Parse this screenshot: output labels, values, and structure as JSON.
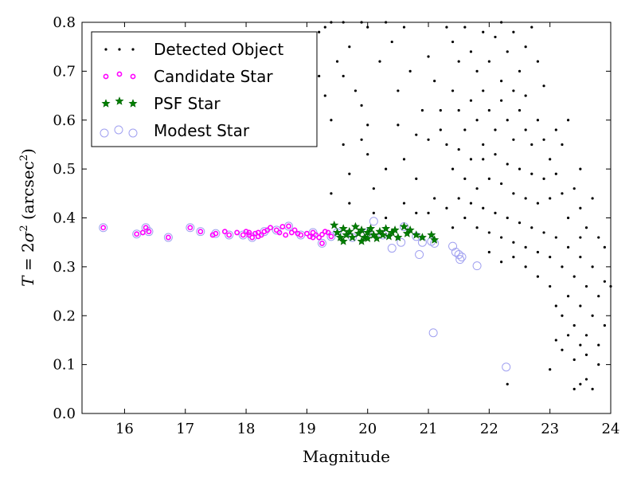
{
  "chart_data": {
    "type": "scatter",
    "title": "",
    "xlabel": "Magnitude",
    "ylabel_parts": [
      "T",
      " = 2",
      "σ",
      "2",
      " (arcsec",
      "2",
      ")"
    ],
    "xlim": [
      15.3,
      24
    ],
    "ylim": [
      0,
      0.8
    ],
    "xticks": [
      16,
      17,
      18,
      19,
      20,
      21,
      22,
      23,
      24
    ],
    "yticks": [
      0.0,
      0.1,
      0.2,
      0.3,
      0.4,
      0.5,
      0.6,
      0.7,
      0.8
    ],
    "grid": false,
    "legend_position": "top-left",
    "colors": {
      "detected": "#000000",
      "candidate": "#ff00ff",
      "psf": "#008000",
      "modest": "#a0a0f0"
    },
    "series": [
      {
        "name": "Detected Object",
        "marker": "dot",
        "points": [
          [
            19.2,
            0.78
          ],
          [
            19.3,
            0.79
          ],
          [
            19.4,
            0.8
          ],
          [
            19.6,
            0.8
          ],
          [
            19.7,
            0.75
          ],
          [
            19.9,
            0.8
          ],
          [
            20.0,
            0.79
          ],
          [
            20.3,
            0.8
          ],
          [
            20.6,
            0.79
          ],
          [
            19.5,
            0.72
          ],
          [
            19.6,
            0.69
          ],
          [
            19.8,
            0.66
          ],
          [
            19.9,
            0.63
          ],
          [
            20.0,
            0.59
          ],
          [
            20.2,
            0.72
          ],
          [
            20.4,
            0.76
          ],
          [
            20.5,
            0.66
          ],
          [
            20.7,
            0.7
          ],
          [
            19.2,
            0.69
          ],
          [
            19.3,
            0.65
          ],
          [
            19.4,
            0.6
          ],
          [
            19.6,
            0.55
          ],
          [
            19.7,
            0.49
          ],
          [
            19.9,
            0.56
          ],
          [
            20.0,
            0.53
          ],
          [
            20.1,
            0.46
          ],
          [
            20.3,
            0.5
          ],
          [
            20.5,
            0.59
          ],
          [
            20.6,
            0.52
          ],
          [
            20.8,
            0.48
          ],
          [
            20.9,
            0.62
          ],
          [
            21.0,
            0.56
          ],
          [
            21.1,
            0.44
          ],
          [
            21.2,
            0.58
          ],
          [
            21.0,
            0.73
          ],
          [
            21.1,
            0.68
          ],
          [
            19.4,
            0.45
          ],
          [
            19.7,
            0.43
          ],
          [
            20.1,
            0.41
          ],
          [
            20.3,
            0.4
          ],
          [
            20.6,
            0.43
          ],
          [
            20.8,
            0.41
          ],
          [
            21.0,
            0.41
          ],
          [
            21.3,
            0.42
          ],
          [
            21.4,
            0.38
          ],
          [
            21.3,
            0.79
          ],
          [
            21.4,
            0.76
          ],
          [
            21.5,
            0.72
          ],
          [
            21.6,
            0.79
          ],
          [
            21.7,
            0.74
          ],
          [
            21.8,
            0.7
          ],
          [
            21.9,
            0.78
          ],
          [
            22.0,
            0.72
          ],
          [
            22.1,
            0.77
          ],
          [
            22.2,
            0.8
          ],
          [
            22.3,
            0.74
          ],
          [
            22.4,
            0.78
          ],
          [
            22.5,
            0.7
          ],
          [
            22.6,
            0.75
          ],
          [
            22.7,
            0.79
          ],
          [
            22.8,
            0.72
          ],
          [
            22.2,
            0.68
          ],
          [
            22.4,
            0.66
          ],
          [
            21.4,
            0.66
          ],
          [
            21.5,
            0.62
          ],
          [
            21.6,
            0.58
          ],
          [
            21.7,
            0.64
          ],
          [
            21.8,
            0.6
          ],
          [
            21.9,
            0.66
          ],
          [
            22.0,
            0.62
          ],
          [
            22.1,
            0.58
          ],
          [
            22.2,
            0.64
          ],
          [
            22.3,
            0.6
          ],
          [
            22.4,
            0.56
          ],
          [
            22.5,
            0.62
          ],
          [
            22.6,
            0.58
          ],
          [
            22.7,
            0.55
          ],
          [
            22.8,
            0.6
          ],
          [
            22.9,
            0.56
          ],
          [
            23.0,
            0.52
          ],
          [
            23.1,
            0.58
          ],
          [
            21.3,
            0.55
          ],
          [
            21.4,
            0.5
          ],
          [
            21.5,
            0.54
          ],
          [
            21.6,
            0.48
          ],
          [
            21.7,
            0.52
          ],
          [
            21.8,
            0.46
          ],
          [
            21.9,
            0.52
          ],
          [
            22.0,
            0.48
          ],
          [
            22.1,
            0.53
          ],
          [
            22.2,
            0.47
          ],
          [
            22.3,
            0.51
          ],
          [
            22.4,
            0.45
          ],
          [
            22.5,
            0.5
          ],
          [
            22.6,
            0.44
          ],
          [
            22.7,
            0.49
          ],
          [
            22.8,
            0.43
          ],
          [
            22.9,
            0.48
          ],
          [
            23.0,
            0.44
          ],
          [
            23.1,
            0.49
          ],
          [
            23.2,
            0.45
          ],
          [
            23.3,
            0.4
          ],
          [
            23.4,
            0.46
          ],
          [
            23.5,
            0.42
          ],
          [
            23.6,
            0.38
          ],
          [
            23.7,
            0.44
          ],
          [
            23.8,
            0.36
          ],
          [
            23.9,
            0.34
          ],
          [
            21.5,
            0.44
          ],
          [
            21.6,
            0.4
          ],
          [
            21.7,
            0.43
          ],
          [
            21.8,
            0.38
          ],
          [
            21.9,
            0.42
          ],
          [
            22.0,
            0.37
          ],
          [
            22.1,
            0.41
          ],
          [
            22.2,
            0.36
          ],
          [
            22.3,
            0.4
          ],
          [
            22.4,
            0.35
          ],
          [
            22.5,
            0.39
          ],
          [
            22.6,
            0.34
          ],
          [
            22.7,
            0.38
          ],
          [
            22.8,
            0.33
          ],
          [
            22.9,
            0.37
          ],
          [
            23.0,
            0.32
          ],
          [
            23.1,
            0.36
          ],
          [
            23.2,
            0.3
          ],
          [
            23.3,
            0.34
          ],
          [
            23.4,
            0.28
          ],
          [
            23.5,
            0.32
          ],
          [
            23.6,
            0.26
          ],
          [
            23.7,
            0.3
          ],
          [
            23.8,
            0.24
          ],
          [
            23.9,
            0.27
          ],
          [
            24.0,
            0.26
          ],
          [
            23.5,
            0.36
          ],
          [
            22.0,
            0.33
          ],
          [
            22.2,
            0.31
          ],
          [
            22.4,
            0.32
          ],
          [
            22.6,
            0.3
          ],
          [
            22.8,
            0.28
          ],
          [
            23.0,
            0.26
          ],
          [
            23.1,
            0.22
          ],
          [
            23.2,
            0.2
          ],
          [
            23.3,
            0.24
          ],
          [
            23.4,
            0.18
          ],
          [
            23.5,
            0.22
          ],
          [
            23.6,
            0.16
          ],
          [
            23.7,
            0.2
          ],
          [
            23.8,
            0.14
          ],
          [
            23.9,
            0.18
          ],
          [
            23.1,
            0.15
          ],
          [
            23.2,
            0.13
          ],
          [
            23.3,
            0.16
          ],
          [
            23.4,
            0.11
          ],
          [
            23.5,
            0.14
          ],
          [
            23.6,
            0.12
          ],
          [
            23.8,
            0.1
          ],
          [
            23.0,
            0.09
          ],
          [
            23.5,
            0.06
          ],
          [
            23.6,
            0.07
          ],
          [
            23.7,
            0.05
          ],
          [
            23.4,
            0.05
          ],
          [
            22.3,
            0.06
          ],
          [
            21.9,
            0.55
          ],
          [
            22.6,
            0.65
          ],
          [
            23.2,
            0.55
          ],
          [
            23.5,
            0.5
          ],
          [
            22.9,
            0.67
          ],
          [
            23.3,
            0.6
          ],
          [
            21.2,
            0.62
          ],
          [
            20.8,
            0.57
          ]
        ]
      },
      {
        "name": "Candidate Star",
        "marker": "circle-small",
        "points": [
          [
            15.65,
            0.38
          ],
          [
            16.2,
            0.367
          ],
          [
            16.3,
            0.37
          ],
          [
            16.35,
            0.38
          ],
          [
            16.4,
            0.372
          ],
          [
            16.72,
            0.36
          ],
          [
            17.08,
            0.38
          ],
          [
            17.25,
            0.372
          ],
          [
            17.45,
            0.365
          ],
          [
            17.5,
            0.368
          ],
          [
            17.65,
            0.372
          ],
          [
            17.72,
            0.365
          ],
          [
            17.85,
            0.37
          ],
          [
            17.95,
            0.365
          ],
          [
            18.0,
            0.372
          ],
          [
            18.05,
            0.365
          ],
          [
            18.1,
            0.36
          ],
          [
            18.15,
            0.368
          ],
          [
            18.2,
            0.37
          ],
          [
            18.25,
            0.365
          ],
          [
            18.3,
            0.372
          ],
          [
            18.35,
            0.375
          ],
          [
            18.4,
            0.38
          ],
          [
            18.5,
            0.375
          ],
          [
            18.55,
            0.37
          ],
          [
            18.6,
            0.382
          ],
          [
            18.65,
            0.365
          ],
          [
            18.7,
            0.383
          ],
          [
            18.75,
            0.37
          ],
          [
            18.8,
            0.375
          ],
          [
            18.85,
            0.368
          ],
          [
            18.9,
            0.365
          ],
          [
            19.0,
            0.368
          ],
          [
            19.05,
            0.362
          ],
          [
            19.1,
            0.37
          ],
          [
            19.15,
            0.365
          ],
          [
            19.2,
            0.36
          ],
          [
            19.25,
            0.366
          ],
          [
            19.3,
            0.372
          ],
          [
            19.35,
            0.37
          ],
          [
            19.4,
            0.362
          ],
          [
            19.25,
            0.348
          ],
          [
            19.1,
            0.36
          ],
          [
            18.2,
            0.362
          ],
          [
            18.05,
            0.37
          ]
        ]
      },
      {
        "name": "PSF Star",
        "marker": "star",
        "points": [
          [
            19.45,
            0.385
          ],
          [
            19.5,
            0.37
          ],
          [
            19.55,
            0.36
          ],
          [
            19.6,
            0.378
          ],
          [
            19.65,
            0.365
          ],
          [
            19.7,
            0.372
          ],
          [
            19.75,
            0.36
          ],
          [
            19.8,
            0.382
          ],
          [
            19.85,
            0.368
          ],
          [
            19.9,
            0.375
          ],
          [
            19.95,
            0.36
          ],
          [
            20.0,
            0.37
          ],
          [
            20.05,
            0.378
          ],
          [
            20.1,
            0.365
          ],
          [
            20.15,
            0.358
          ],
          [
            20.2,
            0.372
          ],
          [
            20.25,
            0.365
          ],
          [
            20.3,
            0.378
          ],
          [
            20.35,
            0.362
          ],
          [
            20.4,
            0.37
          ],
          [
            20.45,
            0.375
          ],
          [
            20.5,
            0.36
          ],
          [
            20.6,
            0.382
          ],
          [
            20.65,
            0.368
          ],
          [
            20.7,
            0.375
          ],
          [
            20.8,
            0.365
          ],
          [
            20.9,
            0.36
          ],
          [
            21.05,
            0.365
          ],
          [
            21.1,
            0.355
          ],
          [
            19.6,
            0.352
          ],
          [
            19.9,
            0.352
          ],
          [
            20.0,
            0.358
          ]
        ]
      },
      {
        "name": "Modest Star",
        "marker": "circle-open",
        "points": [
          [
            15.65,
            0.38
          ],
          [
            16.2,
            0.367
          ],
          [
            16.35,
            0.38
          ],
          [
            16.4,
            0.372
          ],
          [
            16.72,
            0.36
          ],
          [
            17.08,
            0.38
          ],
          [
            17.25,
            0.372
          ],
          [
            17.5,
            0.368
          ],
          [
            17.72,
            0.365
          ],
          [
            17.95,
            0.365
          ],
          [
            18.1,
            0.36
          ],
          [
            18.3,
            0.372
          ],
          [
            18.5,
            0.375
          ],
          [
            18.7,
            0.383
          ],
          [
            18.9,
            0.365
          ],
          [
            19.1,
            0.37
          ],
          [
            19.25,
            0.348
          ],
          [
            19.4,
            0.362
          ],
          [
            19.5,
            0.37
          ],
          [
            19.75,
            0.36
          ],
          [
            20.0,
            0.37
          ],
          [
            20.1,
            0.393
          ],
          [
            20.25,
            0.365
          ],
          [
            20.4,
            0.338
          ],
          [
            20.55,
            0.35
          ],
          [
            20.6,
            0.382
          ],
          [
            20.8,
            0.362
          ],
          [
            20.85,
            0.325
          ],
          [
            20.9,
            0.35
          ],
          [
            21.05,
            0.352
          ],
          [
            21.1,
            0.348
          ],
          [
            21.4,
            0.342
          ],
          [
            21.45,
            0.33
          ],
          [
            21.5,
            0.325
          ],
          [
            21.52,
            0.315
          ],
          [
            21.55,
            0.32
          ],
          [
            21.8,
            0.302
          ],
          [
            21.08,
            0.165
          ],
          [
            22.28,
            0.095
          ]
        ]
      }
    ]
  }
}
